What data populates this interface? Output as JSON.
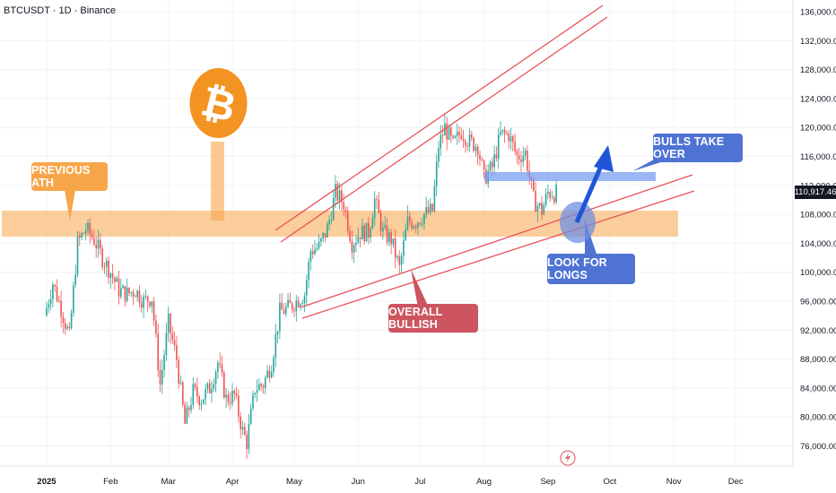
{
  "header": {
    "symbol": "BTCUSDT",
    "interval": "1D",
    "exchange": "Binance",
    "title": "BTCUSDT · 1D · Binance"
  },
  "annotations": {
    "previous_ath": "PREVIOUS ATH",
    "overall_bullish": "OVERALL BULLISH",
    "bulls_take_over": "BULLS TAKE OVER",
    "look_for_longs": "LOOK FOR LONGS"
  },
  "current_price": "110,917.46",
  "colors": {
    "up": "#26a69a",
    "down": "#ef5350",
    "ath_zone": "#f7a64a",
    "channel": "#e8525a",
    "bull_zone": "#7b9cf0",
    "arrow": "#1f56d8",
    "btc": "#f39322"
  },
  "chart_data": {
    "type": "candlestick",
    "title": "BTCUSDT · 1D · Binance",
    "x_ticks": [
      "2025",
      "Feb",
      "Mar",
      "Apr",
      "May",
      "Jun",
      "Jul",
      "Aug",
      "Sep",
      "Oct",
      "Nov",
      "Dec"
    ],
    "y_ticks": [
      "76,000.00",
      "80,000.00",
      "84,000.00",
      "88,000.00",
      "92,000.00",
      "96,000.00",
      "100,000.00",
      "104,000.00",
      "108,000.00",
      "112,000.00",
      "116,000.00",
      "120,000.00",
      "124,000.00",
      "128,000.00",
      "132,000.00",
      "136,000.00"
    ],
    "ylim": [
      73000,
      138000
    ],
    "last_price": 110917.46,
    "previous_ath_zone": [
      105000,
      108500
    ],
    "bull_zone": [
      112000,
      113000
    ],
    "price_path": [
      [
        "2025-01-01",
        94000
      ],
      [
        "2025-01-05",
        98500
      ],
      [
        "2025-01-09",
        95000
      ],
      [
        "2025-01-13",
        91000
      ],
      [
        "2025-01-17",
        104000
      ],
      [
        "2025-01-21",
        106000
      ],
      [
        "2025-01-25",
        104500
      ],
      [
        "2025-01-29",
        102000
      ],
      [
        "2025-02-02",
        100000
      ],
      [
        "2025-02-06",
        97500
      ],
      [
        "2025-02-10",
        97000
      ],
      [
        "2025-02-14",
        97500
      ],
      [
        "2025-02-18",
        96000
      ],
      [
        "2025-02-22",
        96500
      ],
      [
        "2025-02-26",
        84500
      ],
      [
        "2025-03-02",
        93000
      ],
      [
        "2025-03-06",
        88000
      ],
      [
        "2025-03-10",
        79000
      ],
      [
        "2025-03-14",
        83500
      ],
      [
        "2025-03-18",
        82500
      ],
      [
        "2025-03-22",
        84000
      ],
      [
        "2025-03-26",
        87500
      ],
      [
        "2025-03-30",
        82500
      ],
      [
        "2025-04-03",
        83000
      ],
      [
        "2025-04-07",
        78000
      ],
      [
        "2025-04-09",
        76500
      ],
      [
        "2025-04-13",
        84000
      ],
      [
        "2025-04-17",
        84500
      ],
      [
        "2025-04-21",
        87500
      ],
      [
        "2025-04-25",
        94500
      ],
      [
        "2025-04-29",
        95000
      ],
      [
        "2025-05-03",
        96000
      ],
      [
        "2025-05-07",
        97000
      ],
      [
        "2025-05-10",
        103000
      ],
      [
        "2025-05-14",
        103500
      ],
      [
        "2025-05-18",
        106000
      ],
      [
        "2025-05-22",
        111000
      ],
      [
        "2025-05-26",
        109500
      ],
      [
        "2025-05-30",
        104000
      ],
      [
        "2025-06-03",
        105500
      ],
      [
        "2025-06-07",
        105500
      ],
      [
        "2025-06-10",
        110000
      ],
      [
        "2025-06-14",
        105500
      ],
      [
        "2025-06-18",
        104500
      ],
      [
        "2025-06-22",
        100500
      ],
      [
        "2025-06-26",
        107000
      ],
      [
        "2025-06-30",
        107000
      ],
      [
        "2025-07-04",
        108000
      ],
      [
        "2025-07-08",
        108500
      ],
      [
        "2025-07-11",
        117500
      ],
      [
        "2025-07-14",
        120000
      ],
      [
        "2025-07-18",
        117500
      ],
      [
        "2025-07-22",
        119500
      ],
      [
        "2025-07-26",
        118000
      ],
      [
        "2025-07-30",
        117500
      ],
      [
        "2025-08-02",
        113000
      ],
      [
        "2025-08-06",
        114500
      ],
      [
        "2025-08-10",
        119000
      ],
      [
        "2025-08-14",
        119000
      ],
      [
        "2025-08-18",
        116000
      ],
      [
        "2025-08-22",
        116500
      ],
      [
        "2025-08-26",
        110000
      ],
      [
        "2025-08-30",
        108500
      ],
      [
        "2025-09-02",
        111000
      ],
      [
        "2025-09-05",
        110917.46
      ]
    ]
  }
}
